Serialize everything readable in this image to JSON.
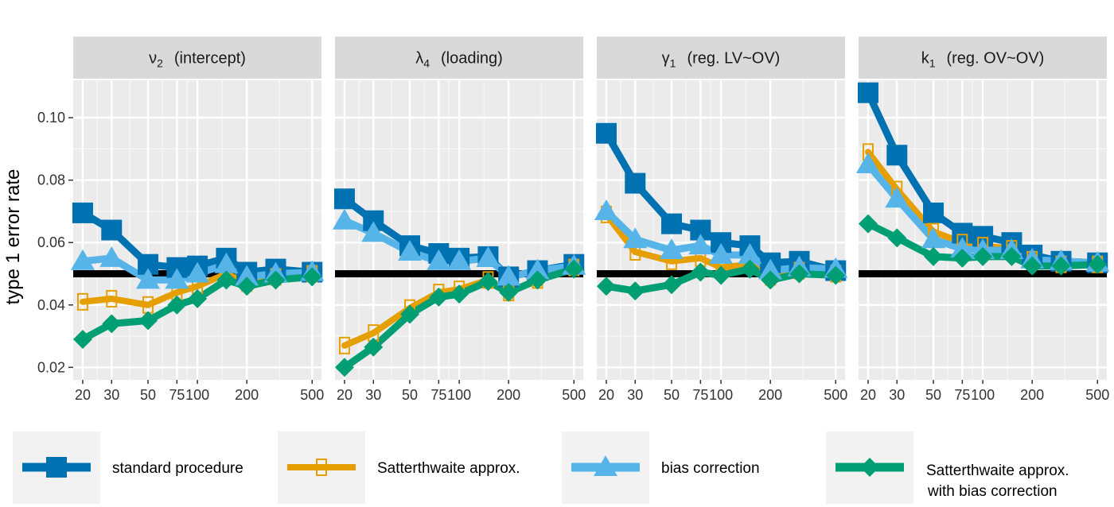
{
  "chart_data": {
    "type": "line",
    "ylabel": "type 1 error rate",
    "xlabel": "",
    "x_scale": "log",
    "x_ticks": [
      20,
      30,
      50,
      75,
      100,
      200,
      500
    ],
    "x_tick_labels": [
      "20",
      "30",
      "50",
      "75",
      "100",
      "200",
      "500"
    ],
    "y_ticks": [
      0.02,
      0.04,
      0.06,
      0.08,
      0.1
    ],
    "y_tick_labels": [
      "0.02",
      "0.04",
      "0.06",
      "0.08",
      "0.10"
    ],
    "ylim": [
      0.016,
      0.112
    ],
    "xlim": [
      17.5,
      570
    ],
    "reference_line": 0.05,
    "grid": true,
    "legend_position": "bottom",
    "x": [
      20,
      30,
      50,
      75,
      100,
      150,
      200,
      300,
      500
    ],
    "series_styles": [
      {
        "color": "#0072B2",
        "marker": "square"
      },
      {
        "color": "#E69F00",
        "marker": "open-square"
      },
      {
        "color": "#56B4E9",
        "marker": "triangle"
      },
      {
        "color": "#009E73",
        "marker": "diamond"
      }
    ],
    "legend": [
      "standard procedure",
      "Satterthwaite approx.",
      "bias correction",
      "Satterthwaite approx.|with bias correction"
    ],
    "panels": [
      {
        "symbol": "ν",
        "subscript": "2",
        "label": "(intercept)",
        "series": [
          {
            "values": [
              0.0695,
              0.064,
              0.053,
              0.052,
              0.0525,
              0.055,
              0.0505,
              0.0515,
              0.0505
            ]
          },
          {
            "values": [
              0.041,
              0.042,
              0.04,
              0.044,
              0.046,
              0.05,
              0.047,
              0.049,
              0.05
            ]
          },
          {
            "values": [
              0.054,
              0.055,
              0.048,
              0.048,
              0.05,
              0.053,
              0.049,
              0.05,
              0.0505
            ]
          },
          {
            "values": [
              0.029,
              0.034,
              0.035,
              0.04,
              0.042,
              0.048,
              0.046,
              0.048,
              0.049
            ]
          }
        ]
      },
      {
        "symbol": "λ",
        "subscript": "4",
        "label": "(loading)",
        "series": [
          {
            "values": [
              0.074,
              0.067,
              0.059,
              0.0565,
              0.055,
              0.0555,
              0.049,
              0.051,
              0.053
            ]
          },
          {
            "values": [
              0.027,
              0.031,
              0.039,
              0.044,
              0.045,
              0.048,
              0.044,
              0.048,
              0.052
            ]
          },
          {
            "values": [
              0.067,
              0.063,
              0.057,
              0.054,
              0.054,
              0.055,
              0.049,
              0.051,
              0.0525
            ]
          },
          {
            "values": [
              0.02,
              0.0265,
              0.037,
              0.0425,
              0.0435,
              0.0475,
              0.044,
              0.048,
              0.0515
            ]
          }
        ]
      },
      {
        "symbol": "γ",
        "subscript": "1",
        "label": "(reg. LV~OV)",
        "series": [
          {
            "values": [
              0.095,
              0.079,
              0.066,
              0.064,
              0.06,
              0.059,
              0.0535,
              0.054,
              0.051
            ]
          },
          {
            "values": [
              0.069,
              0.057,
              0.054,
              0.055,
              0.052,
              0.053,
              0.049,
              0.051,
              0.05
            ]
          },
          {
            "values": [
              0.07,
              0.061,
              0.0575,
              0.059,
              0.056,
              0.056,
              0.051,
              0.052,
              0.0515
            ]
          },
          {
            "values": [
              0.046,
              0.0445,
              0.0465,
              0.0505,
              0.0495,
              0.0515,
              0.048,
              0.05,
              0.0495
            ]
          }
        ]
      },
      {
        "symbol": "k",
        "subscript": "1",
        "label": "(reg. OV~OV)",
        "series": [
          {
            "values": [
              0.108,
              0.088,
              0.0695,
              0.063,
              0.062,
              0.06,
              0.056,
              0.054,
              0.0535
            ]
          },
          {
            "values": [
              0.089,
              0.077,
              0.0635,
              0.06,
              0.059,
              0.058,
              0.0545,
              0.053,
              0.053
            ]
          },
          {
            "values": [
              0.085,
              0.074,
              0.061,
              0.058,
              0.0575,
              0.0575,
              0.0545,
              0.054,
              0.0535
            ]
          },
          {
            "values": [
              0.066,
              0.0615,
              0.0555,
              0.055,
              0.0555,
              0.0555,
              0.0525,
              0.0525,
              0.053
            ]
          }
        ]
      }
    ]
  }
}
